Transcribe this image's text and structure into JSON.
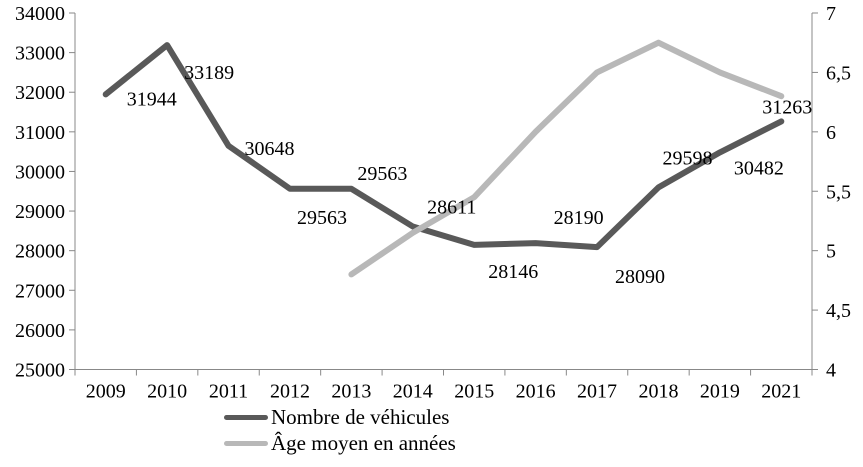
{
  "chart_data": {
    "type": "line",
    "categories": [
      "2009",
      "2010",
      "2011",
      "2012",
      "2013",
      "2014",
      "2015",
      "2016",
      "2017",
      "2018",
      "2019",
      "2021"
    ],
    "series": [
      {
        "name": "Nombre de véhicules",
        "axis": "left",
        "color": "#595959",
        "values": [
          31944,
          33189,
          30648,
          29563,
          29563,
          28611,
          28146,
          28190,
          28090,
          29598,
          30482,
          31263
        ],
        "data_labels": [
          "31944",
          "33189",
          "30648",
          "29563",
          "29563",
          "28611",
          "28146",
          "28190",
          "28090",
          "29598",
          "30482",
          "31263"
        ],
        "label_offsets": [
          [
            46,
            4
          ],
          [
            42,
            27
          ],
          [
            41,
            2
          ],
          [
            32,
            28
          ],
          [
            31,
            -16
          ],
          [
            39,
            -20
          ],
          [
            39,
            26
          ],
          [
            43,
            -26
          ],
          [
            43,
            29
          ],
          [
            29,
            -30
          ],
          [
            39,
            15
          ],
          [
            6,
            -15
          ]
        ]
      },
      {
        "name": "Âge moyen en années",
        "axis": "right",
        "color": "#b8b8b8",
        "values": [
          null,
          null,
          null,
          null,
          4.8,
          5.15,
          5.45,
          6.0,
          6.5,
          6.75,
          6.5,
          6.3
        ],
        "data_labels": null,
        "label_offsets": null
      }
    ],
    "left_axis": {
      "min": 25000,
      "max": 34000,
      "step": 1000,
      "tick_labels": [
        "25000",
        "26000",
        "27000",
        "28000",
        "29000",
        "30000",
        "31000",
        "32000",
        "33000",
        "34000"
      ]
    },
    "right_axis": {
      "min": 4,
      "max": 7,
      "step": 0.5,
      "tick_labels": [
        "4",
        "4,5",
        "5",
        "5,5",
        "6",
        "6,5",
        "7"
      ]
    },
    "legend": {
      "position": "bottom",
      "items": [
        {
          "label": "Nombre de véhicules",
          "color": "#595959"
        },
        {
          "label": "Âge moyen en années",
          "color": "#b8b8b8"
        }
      ]
    },
    "grid": false,
    "axis_color": "#888888",
    "text_color": "#000000",
    "title": "",
    "xlabel": "",
    "ylabel": ""
  }
}
